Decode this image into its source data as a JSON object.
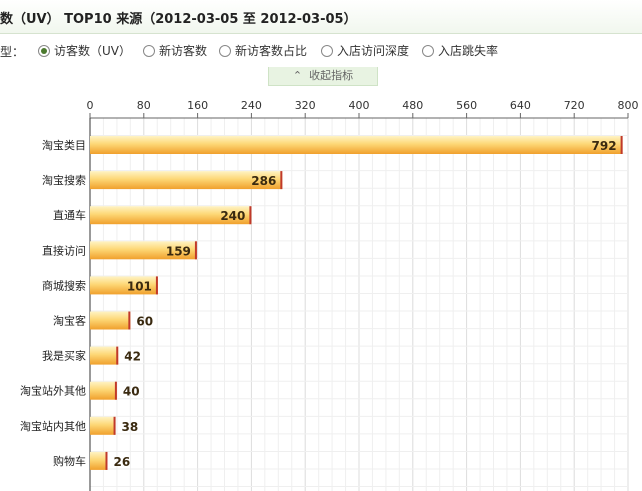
{
  "header": {
    "title": "数（UV） TOP10 来源（2012-03-05 至 2012-03-05）"
  },
  "type_bar": {
    "label": "型：",
    "options": [
      {
        "label": "访客数（UV）",
        "selected": true
      },
      {
        "label": "新访客数",
        "selected": false
      },
      {
        "label": "新访客数占比",
        "selected": false
      },
      {
        "label": "入店访问深度",
        "selected": false
      },
      {
        "label": "入店跳失率",
        "selected": false
      }
    ]
  },
  "collapse": {
    "label": "收起指标",
    "icon": "chevron-up-icon"
  },
  "colors": {
    "bar_light": "#fde49a",
    "bar_dark": "#f0a02c",
    "bar_edge": "#c0392b"
  },
  "chart_data": {
    "type": "bar",
    "orientation": "horizontal",
    "categories": [
      "淘宝类目",
      "淘宝搜索",
      "直通车",
      "直接访问",
      "商城搜索",
      "淘宝客",
      "我是买家",
      "淘宝站外其他",
      "淘宝站内其他",
      "购物车"
    ],
    "values": [
      792,
      286,
      240,
      159,
      101,
      60,
      42,
      40,
      38,
      26
    ],
    "xticks": [
      0,
      80,
      160,
      240,
      320,
      400,
      480,
      560,
      640,
      720,
      800
    ],
    "xlim": [
      0,
      800
    ],
    "grid": true,
    "xaxis_position": "top"
  }
}
